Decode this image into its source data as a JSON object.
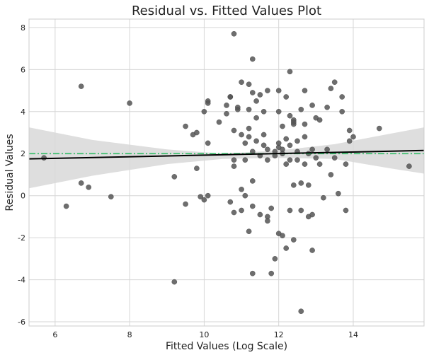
{
  "chart_data": {
    "type": "scatter",
    "title": "Residual vs. Fitted Values Plot",
    "xlabel": "Fitted Values (Log Scale)",
    "ylabel": "Residual Values",
    "xlim": [
      5.3,
      15.9
    ],
    "ylim": [
      -6.2,
      8.4
    ],
    "x_ticks": [
      6,
      8,
      10,
      12,
      14
    ],
    "y_ticks": [
      -6,
      -4,
      -2,
      0,
      2,
      4,
      6,
      8
    ],
    "x_tick_labels": [
      "6",
      "8",
      "10",
      "12",
      "14"
    ],
    "y_tick_labels": [
      "-6",
      "-4",
      "-2",
      "0",
      "2",
      "4",
      "6",
      "8"
    ],
    "grid": true,
    "point_color": "#555555",
    "fit_line": {
      "color": "#000000",
      "start": [
        5.3,
        1.75
      ],
      "end": [
        15.9,
        2.15
      ]
    },
    "confidence_band": {
      "color": "#d8d8d8",
      "x": [
        5.3,
        7,
        9,
        10.5,
        12,
        13.5,
        15,
        15.9
      ],
      "lower": [
        0.35,
        0.95,
        1.5,
        1.75,
        1.8,
        1.75,
        1.3,
        1.05
      ],
      "upper": [
        3.25,
        2.65,
        2.2,
        2.0,
        2.15,
        2.45,
        2.95,
        3.25
      ]
    },
    "reference_line": {
      "color": "#3dbf6e",
      "y": 2.0
    },
    "points": [
      [
        5.7,
        1.8
      ],
      [
        6.3,
        -0.5
      ],
      [
        6.7,
        0.6
      ],
      [
        6.7,
        5.2
      ],
      [
        6.9,
        0.4
      ],
      [
        7.5,
        -0.05
      ],
      [
        8.0,
        4.4
      ],
      [
        9.2,
        -4.1
      ],
      [
        9.2,
        0.9
      ],
      [
        9.5,
        3.3
      ],
      [
        9.5,
        -0.4
      ],
      [
        9.7,
        2.9
      ],
      [
        9.8,
        1.3
      ],
      [
        9.8,
        3.0
      ],
      [
        9.9,
        -0.05
      ],
      [
        10.0,
        4.0
      ],
      [
        10.0,
        -0.2
      ],
      [
        10.1,
        4.5
      ],
      [
        10.1,
        4.4
      ],
      [
        10.1,
        0.0
      ],
      [
        10.1,
        2.5
      ],
      [
        10.4,
        3.5
      ],
      [
        10.6,
        4.3
      ],
      [
        10.6,
        3.9
      ],
      [
        10.7,
        4.7
      ],
      [
        10.7,
        4.7
      ],
      [
        10.7,
        -0.3
      ],
      [
        10.8,
        3.1
      ],
      [
        10.8,
        1.7
      ],
      [
        10.8,
        1.4
      ],
      [
        10.8,
        -0.8
      ],
      [
        10.8,
        7.7
      ],
      [
        10.9,
        4.1
      ],
      [
        10.9,
        4.2
      ],
      [
        11.0,
        -0.7
      ],
      [
        11.0,
        0.3
      ],
      [
        11.0,
        5.4
      ],
      [
        11.0,
        2.9
      ],
      [
        11.1,
        0.0
      ],
      [
        11.1,
        1.7
      ],
      [
        11.1,
        2.5
      ],
      [
        11.2,
        5.3
      ],
      [
        11.2,
        4.1
      ],
      [
        11.2,
        2.8
      ],
      [
        11.2,
        3.2
      ],
      [
        11.2,
        -1.7
      ],
      [
        11.3,
        0.7
      ],
      [
        11.3,
        -0.5
      ],
      [
        11.3,
        4.9
      ],
      [
        11.3,
        -3.7
      ],
      [
        11.3,
        6.5
      ],
      [
        11.3,
        2.1
      ],
      [
        11.4,
        4.5
      ],
      [
        11.4,
        2.6
      ],
      [
        11.4,
        3.7
      ],
      [
        11.5,
        4.8
      ],
      [
        11.5,
        -0.9
      ],
      [
        11.5,
        1.9
      ],
      [
        11.6,
        2.4
      ],
      [
        11.6,
        4.0
      ],
      [
        11.6,
        2.9
      ],
      [
        11.7,
        2.2
      ],
      [
        11.7,
        -1.2
      ],
      [
        11.7,
        -1.0
      ],
      [
        11.7,
        5.0
      ],
      [
        11.7,
        1.7
      ],
      [
        11.8,
        -3.7
      ],
      [
        11.8,
        -0.6
      ],
      [
        11.9,
        2.1
      ],
      [
        11.9,
        -3.0
      ],
      [
        11.9,
        1.9
      ],
      [
        12.0,
        5.0
      ],
      [
        12.0,
        4.0
      ],
      [
        12.0,
        -1.8
      ],
      [
        12.0,
        2.3
      ],
      [
        12.0,
        2.5
      ],
      [
        12.1,
        -1.9
      ],
      [
        12.1,
        3.3
      ],
      [
        12.1,
        2.0
      ],
      [
        12.1,
        2.2
      ],
      [
        12.2,
        -2.5
      ],
      [
        12.2,
        1.5
      ],
      [
        12.2,
        4.7
      ],
      [
        12.2,
        2.7
      ],
      [
        12.3,
        1.7
      ],
      [
        12.3,
        -0.7
      ],
      [
        12.3,
        2.4
      ],
      [
        12.3,
        5.9
      ],
      [
        12.3,
        3.8
      ],
      [
        12.4,
        3.6
      ],
      [
        12.4,
        3.4
      ],
      [
        12.4,
        -2.1
      ],
      [
        12.4,
        0.5
      ],
      [
        12.4,
        3.5
      ],
      [
        12.5,
        2.6
      ],
      [
        12.5,
        1.7
      ],
      [
        12.5,
        2.1
      ],
      [
        12.6,
        -5.5
      ],
      [
        12.6,
        4.1
      ],
      [
        12.6,
        0.6
      ],
      [
        12.6,
        -0.7
      ],
      [
        12.7,
        2.8
      ],
      [
        12.7,
        3.4
      ],
      [
        12.7,
        5.0
      ],
      [
        12.7,
        1.5
      ],
      [
        12.8,
        -1.0
      ],
      [
        12.8,
        2.0
      ],
      [
        12.8,
        0.5
      ],
      [
        12.9,
        -0.9
      ],
      [
        12.9,
        4.3
      ],
      [
        12.9,
        2.2
      ],
      [
        12.9,
        -2.6
      ],
      [
        13.0,
        1.8
      ],
      [
        13.0,
        3.7
      ],
      [
        13.1,
        3.6
      ],
      [
        13.1,
        1.5
      ],
      [
        13.2,
        -0.1
      ],
      [
        13.3,
        2.2
      ],
      [
        13.3,
        4.2
      ],
      [
        13.4,
        1.0
      ],
      [
        13.4,
        5.1
      ],
      [
        13.5,
        1.8
      ],
      [
        13.5,
        5.4
      ],
      [
        13.6,
        0.1
      ],
      [
        13.7,
        4.7
      ],
      [
        13.7,
        4.0
      ],
      [
        13.8,
        -0.7
      ],
      [
        13.8,
        1.5
      ],
      [
        13.9,
        3.1
      ],
      [
        13.9,
        2.6
      ],
      [
        14.0,
        2.8
      ],
      [
        14.7,
        3.2
      ],
      [
        15.5,
        1.4
      ]
    ]
  }
}
